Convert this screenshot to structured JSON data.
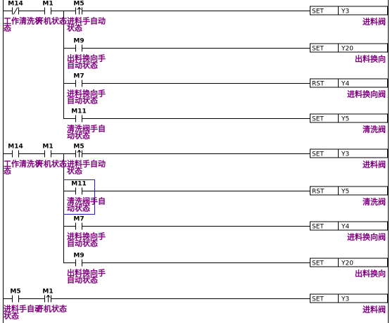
{
  "rungs": [
    {
      "contacts": [
        {
          "address": "M14",
          "kind": "nc",
          "comment": [
            "工作清洗状",
            "态"
          ]
        },
        {
          "address": "M1",
          "kind": "no",
          "comment": [
            "开机状态"
          ]
        },
        {
          "address": "M5",
          "kind": "rising",
          "comment": [
            "进料手自动",
            "状态"
          ]
        }
      ],
      "coils": [
        {
          "instruction": "SET",
          "operand": "Y3",
          "comment": "进料阀"
        },
        {
          "contact": {
            "address": "M9",
            "kind": "no",
            "comment": [
              "出料换向手",
              "自动状态"
            ]
          },
          "instruction": "SET",
          "operand": "Y20",
          "comment": "出料换向"
        },
        {
          "contact": {
            "address": "M7",
            "kind": "no",
            "comment": [
              "进料换向手",
              "自动状态"
            ]
          },
          "instruction": "RST",
          "operand": "Y4",
          "comment": "进料换向阀"
        },
        {
          "contact": {
            "address": "M11",
            "kind": "no",
            "comment": [
              "清洗阀手自",
              "动状态"
            ]
          },
          "instruction": "SET",
          "operand": "Y5",
          "comment": "清洗阀"
        }
      ]
    },
    {
      "contacts": [
        {
          "address": "M14",
          "kind": "no",
          "comment": [
            "工作清洗状",
            "态"
          ]
        },
        {
          "address": "M1",
          "kind": "no",
          "comment": [
            "开机状态"
          ]
        },
        {
          "address": "M5",
          "kind": "rising",
          "comment": [
            "进料手自动",
            "状态"
          ]
        }
      ],
      "coils": [
        {
          "instruction": "SET",
          "operand": "Y3",
          "comment": "进料阀"
        },
        {
          "contact": {
            "address": "M11",
            "kind": "no",
            "comment": [
              "清洗阀手自",
              "动状态"
            ]
          },
          "instruction": "RST",
          "operand": "Y5",
          "comment": "清洗阀"
        },
        {
          "contact": {
            "address": "M7",
            "kind": "no",
            "comment": [
              "进料换向手",
              "自动状态"
            ]
          },
          "instruction": "SET",
          "operand": "Y4",
          "comment": "进料换向阀"
        },
        {
          "contact": {
            "address": "M9",
            "kind": "no",
            "comment": [
              "出料换向手",
              "自动状态"
            ]
          },
          "instruction": "SET",
          "operand": "Y20",
          "comment": "出料换向"
        }
      ]
    },
    {
      "contacts": [
        {
          "address": "M5",
          "kind": "no",
          "comment": [
            "进料手自动",
            "状态"
          ]
        },
        {
          "address": "M1",
          "kind": "rising",
          "comment": [
            "开机状态"
          ]
        }
      ],
      "coils": [
        {
          "instruction": "SET",
          "operand": "Y3",
          "comment": "进料阀"
        }
      ]
    }
  ]
}
